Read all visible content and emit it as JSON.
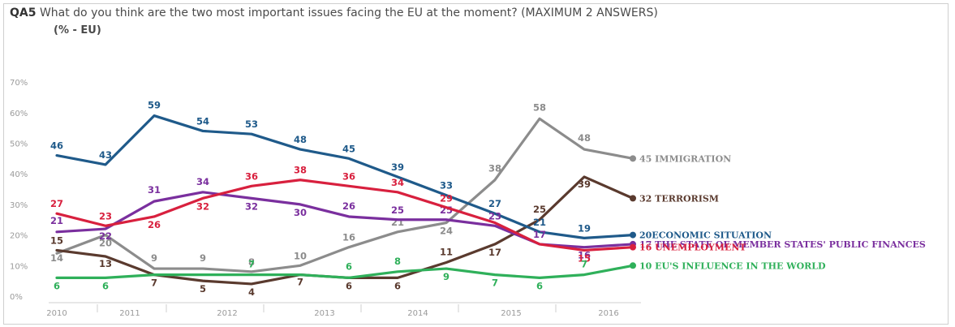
{
  "header": {
    "code": "QA5",
    "question": "What do you think are the two most important issues facing the EU at the moment? (MAXIMUM 2 ANSWERS)",
    "unit": "(% - EU)"
  },
  "chart_data": {
    "type": "line",
    "ylim": [
      0,
      70
    ],
    "y_ticks": [
      "0%",
      "10%",
      "20%",
      "30%",
      "40%",
      "50%",
      "60%",
      "70%"
    ],
    "x_years": [
      "2010",
      "2011",
      "2012",
      "2013",
      "2014",
      "2015",
      "2016"
    ],
    "grid": false,
    "legend": "end-labels",
    "series": [
      {
        "name": "IMMIGRATION",
        "end_label": "45 IMMIGRATION",
        "color": "#8c8c8c",
        "values": [
          14,
          20,
          9,
          9,
          8,
          10,
          16,
          21,
          24,
          38,
          58,
          48,
          45
        ],
        "labels": [
          "14",
          "20",
          "9",
          "9",
          "8",
          "10",
          "16",
          "21",
          "24",
          "38",
          "58",
          "48",
          ""
        ]
      },
      {
        "name": "TERRORISM",
        "end_label": "32 TERRORISM",
        "color": "#5a3a2e",
        "values": [
          15,
          13,
          7,
          5,
          4,
          7,
          6,
          6,
          11,
          17,
          25,
          39,
          32
        ],
        "labels": [
          "15",
          "13",
          "7",
          "5",
          "4",
          "7",
          "6",
          "6",
          "11",
          "17",
          "25",
          "39",
          ""
        ]
      },
      {
        "name": "ECONOMIC SITUATION",
        "end_label": "20ECONOMIC SITUATION",
        "color": "#1f5a8a",
        "values": [
          46,
          43,
          59,
          54,
          53,
          48,
          45,
          39,
          33,
          27,
          21,
          19,
          20
        ],
        "labels": [
          "46",
          "43",
          "59",
          "54",
          "53",
          "48",
          "45",
          "39",
          "33",
          "27",
          "21",
          "19",
          ""
        ]
      },
      {
        "name": "THE STATE OF MEMBER STATES' PUBLIC FINANCES",
        "end_label": "17 THE STATE OF MEMBER STATES' PUBLIC FINANCES",
        "color": "#7a2f9e",
        "values": [
          21,
          22,
          31,
          34,
          32,
          30,
          26,
          25,
          25,
          23,
          17,
          16,
          17
        ],
        "labels": [
          "21",
          "22",
          "31",
          "34",
          "32",
          "30",
          "26",
          "25",
          "25",
          "23",
          "17",
          "16",
          ""
        ]
      },
      {
        "name": "UNEMPLOYMENT",
        "end_label": "16 UNEMPLOYMENT",
        "color": "#d8203e",
        "values": [
          27,
          23,
          26,
          32,
          36,
          38,
          36,
          34,
          29,
          24,
          17,
          15,
          16
        ],
        "labels": [
          "27",
          "23",
          "26",
          "32",
          "36",
          "38",
          "36",
          "34",
          "29",
          "",
          "",
          "15",
          ""
        ]
      },
      {
        "name": "EU'S INFLUENCE IN THE WORLD",
        "end_label": "10 EU'S INFLUENCE IN THE WORLD",
        "color": "#2fb05a",
        "values": [
          6,
          6,
          7,
          7,
          7,
          7,
          6,
          8,
          9,
          7,
          6,
          7,
          10
        ],
        "labels": [
          "6",
          "6",
          "",
          "",
          "7",
          "",
          "6",
          "8",
          "9",
          "7",
          "6",
          "7",
          ""
        ]
      }
    ]
  }
}
